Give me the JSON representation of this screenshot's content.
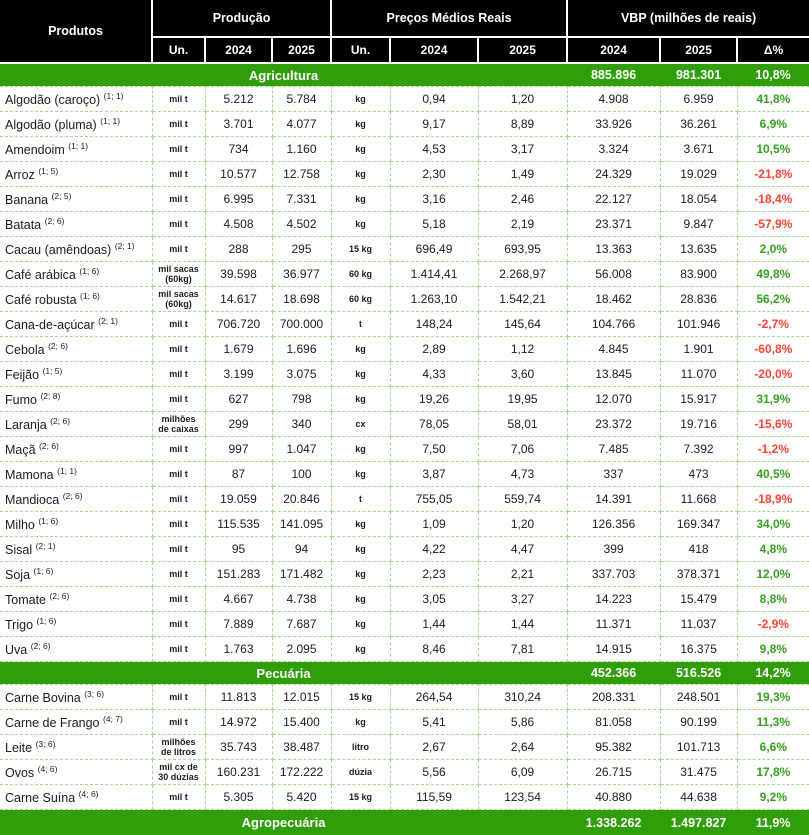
{
  "colors": {
    "section_bar_green": "#2f9e08",
    "positive_delta": "#36a020",
    "negative_delta": "#fb4433",
    "header_bg": "#000000",
    "grid_dashed_green": "#a4d88a"
  },
  "header": {
    "products_label": "Produtos",
    "groups": {
      "production": "Produção",
      "avg_prices": "Preços Médios Reais",
      "vbp": "VBP (milhões de reais)"
    },
    "subcolumns": {
      "un1": "Un.",
      "prod_2024": "2024",
      "prod_2025": "2025",
      "un2": "Un.",
      "price_2024": "2024",
      "price_2025": "2025",
      "vbp_2024": "2024",
      "vbp_2025": "2025",
      "delta": "Δ%"
    }
  },
  "sections": [
    {
      "label": "Agricultura",
      "vbp_2024": "885.896",
      "vbp_2025": "981.301",
      "delta": "10,8%",
      "rows": [
        {
          "name": "Algodão (caroço)",
          "sup": "(1; 1)",
          "un_prod": "mil t",
          "prod_2024": "5.212",
          "prod_2025": "5.784",
          "un_price": "kg",
          "price_2024": "0,94",
          "price_2025": "1,20",
          "vbp_2024": "4.908",
          "vbp_2025": "6.959",
          "delta": "41,8%",
          "trend": "up"
        },
        {
          "name": "Algodão (pluma)",
          "sup": "(1; 1)",
          "un_prod": "mil t",
          "prod_2024": "3.701",
          "prod_2025": "4.077",
          "un_price": "kg",
          "price_2024": "9,17",
          "price_2025": "8,89",
          "vbp_2024": "33.926",
          "vbp_2025": "36.261",
          "delta": "6,9%",
          "trend": "up"
        },
        {
          "name": "Amendoim",
          "sup": "(1; 1)",
          "un_prod": "mil t",
          "prod_2024": "734",
          "prod_2025": "1.160",
          "un_price": "kg",
          "price_2024": "4,53",
          "price_2025": "3,17",
          "vbp_2024": "3.324",
          "vbp_2025": "3.671",
          "delta": "10,5%",
          "trend": "up"
        },
        {
          "name": "Arroz",
          "sup": "(1; 5)",
          "un_prod": "mil t",
          "prod_2024": "10.577",
          "prod_2025": "12.758",
          "un_price": "kg",
          "price_2024": "2,30",
          "price_2025": "1,49",
          "vbp_2024": "24.329",
          "vbp_2025": "19.029",
          "delta": "-21,8%",
          "trend": "down"
        },
        {
          "name": "Banana",
          "sup": "(2; 5)",
          "un_prod": "mil t",
          "prod_2024": "6.995",
          "prod_2025": "7.331",
          "un_price": "kg",
          "price_2024": "3,16",
          "price_2025": "2,46",
          "vbp_2024": "22.127",
          "vbp_2025": "18.054",
          "delta": "-18,4%",
          "trend": "down"
        },
        {
          "name": "Batata",
          "sup": "(2; 6)",
          "un_prod": "mil t",
          "prod_2024": "4.508",
          "prod_2025": "4.502",
          "un_price": "kg",
          "price_2024": "5,18",
          "price_2025": "2,19",
          "vbp_2024": "23.371",
          "vbp_2025": "9.847",
          "delta": "-57,9%",
          "trend": "down"
        },
        {
          "name": "Cacau (amêndoas)",
          "sup": "(2; 1)",
          "un_prod": "mil t",
          "prod_2024": "288",
          "prod_2025": "295",
          "un_price": "15 kg",
          "price_2024": "696,49",
          "price_2025": "693,95",
          "vbp_2024": "13.363",
          "vbp_2025": "13.635",
          "delta": "2,0%",
          "trend": "up"
        },
        {
          "name": "Café arábica",
          "sup": "(1; 6)",
          "un_prod": "mil sacas (60kg)",
          "prod_2024": "39.598",
          "prod_2025": "36.977",
          "un_price": "60 kg",
          "price_2024": "1.414,41",
          "price_2025": "2.268,97",
          "vbp_2024": "56.008",
          "vbp_2025": "83.900",
          "delta": "49,8%",
          "trend": "up"
        },
        {
          "name": "Café robusta",
          "sup": "(1; 6)",
          "un_prod": "mil sacas (60kg)",
          "prod_2024": "14.617",
          "prod_2025": "18.698",
          "un_price": "60 kg",
          "price_2024": "1.263,10",
          "price_2025": "1.542,21",
          "vbp_2024": "18.462",
          "vbp_2025": "28.836",
          "delta": "56,2%",
          "trend": "up"
        },
        {
          "name": "Cana-de-açúcar",
          "sup": "(2; 1)",
          "un_prod": "mil t",
          "prod_2024": "706.720",
          "prod_2025": "700.000",
          "un_price": "t",
          "price_2024": "148,24",
          "price_2025": "145,64",
          "vbp_2024": "104.766",
          "vbp_2025": "101.946",
          "delta": "-2,7%",
          "trend": "down"
        },
        {
          "name": "Cebola",
          "sup": "(2; 6)",
          "un_prod": "mil t",
          "prod_2024": "1.679",
          "prod_2025": "1.696",
          "un_price": "kg",
          "price_2024": "2,89",
          "price_2025": "1,12",
          "vbp_2024": "4.845",
          "vbp_2025": "1.901",
          "delta": "-60,8%",
          "trend": "down"
        },
        {
          "name": "Feijão",
          "sup": "(1; 5)",
          "un_prod": "mil t",
          "prod_2024": "3.199",
          "prod_2025": "3.075",
          "un_price": "kg",
          "price_2024": "4,33",
          "price_2025": "3,60",
          "vbp_2024": "13.845",
          "vbp_2025": "11.070",
          "delta": "-20,0%",
          "trend": "down"
        },
        {
          "name": "Fumo",
          "sup": "(2; 8)",
          "un_prod": "mil t",
          "prod_2024": "627",
          "prod_2025": "798",
          "un_price": "kg",
          "price_2024": "19,26",
          "price_2025": "19,95",
          "vbp_2024": "12.070",
          "vbp_2025": "15.917",
          "delta": "31,9%",
          "trend": "up"
        },
        {
          "name": "Laranja",
          "sup": "(2; 6)",
          "un_prod": "milhões de caixas",
          "prod_2024": "299",
          "prod_2025": "340",
          "un_price": "cx",
          "price_2024": "78,05",
          "price_2025": "58,01",
          "vbp_2024": "23.372",
          "vbp_2025": "19.716",
          "delta": "-15,6%",
          "trend": "down"
        },
        {
          "name": "Maçã",
          "sup": "(2; 6)",
          "un_prod": "mil t",
          "prod_2024": "997",
          "prod_2025": "1.047",
          "un_price": "kg",
          "price_2024": "7,50",
          "price_2025": "7,06",
          "vbp_2024": "7.485",
          "vbp_2025": "7.392",
          "delta": "-1,2%",
          "trend": "down"
        },
        {
          "name": "Mamona",
          "sup": "(1; 1)",
          "un_prod": "mil t",
          "prod_2024": "87",
          "prod_2025": "100",
          "un_price": "kg",
          "price_2024": "3,87",
          "price_2025": "4,73",
          "vbp_2024": "337",
          "vbp_2025": "473",
          "delta": "40,5%",
          "trend": "up"
        },
        {
          "name": "Mandioca",
          "sup": "(2; 6)",
          "un_prod": "mil t",
          "prod_2024": "19.059",
          "prod_2025": "20.846",
          "un_price": "t",
          "price_2024": "755,05",
          "price_2025": "559,74",
          "vbp_2024": "14.391",
          "vbp_2025": "11.668",
          "delta": "-18,9%",
          "trend": "down"
        },
        {
          "name": "Milho",
          "sup": "(1; 6)",
          "un_prod": "mil t",
          "prod_2024": "115.535",
          "prod_2025": "141.095",
          "un_price": "kg",
          "price_2024": "1,09",
          "price_2025": "1,20",
          "vbp_2024": "126.356",
          "vbp_2025": "169.347",
          "delta": "34,0%",
          "trend": "up"
        },
        {
          "name": "Sisal",
          "sup": "(2; 1)",
          "un_prod": "mil t",
          "prod_2024": "95",
          "prod_2025": "94",
          "un_price": "kg",
          "price_2024": "4,22",
          "price_2025": "4,47",
          "vbp_2024": "399",
          "vbp_2025": "418",
          "delta": "4,8%",
          "trend": "up"
        },
        {
          "name": "Soja",
          "sup": "(1; 6)",
          "un_prod": "mil t",
          "prod_2024": "151.283",
          "prod_2025": "171.482",
          "un_price": "kg",
          "price_2024": "2,23",
          "price_2025": "2,21",
          "vbp_2024": "337.703",
          "vbp_2025": "378.371",
          "delta": "12,0%",
          "trend": "up"
        },
        {
          "name": "Tomate",
          "sup": "(2; 6)",
          "un_prod": "mil t",
          "prod_2024": "4.667",
          "prod_2025": "4.738",
          "un_price": "kg",
          "price_2024": "3,05",
          "price_2025": "3,27",
          "vbp_2024": "14.223",
          "vbp_2025": "15.479",
          "delta": "8,8%",
          "trend": "up"
        },
        {
          "name": "Trigo",
          "sup": "(1; 6)",
          "un_prod": "mil t",
          "prod_2024": "7.889",
          "prod_2025": "7.687",
          "un_price": "kg",
          "price_2024": "1,44",
          "price_2025": "1,44",
          "vbp_2024": "11.371",
          "vbp_2025": "11.037",
          "delta": "-2,9%",
          "trend": "down"
        },
        {
          "name": "Uva",
          "sup": "(2; 6)",
          "un_prod": "mil t",
          "prod_2024": "1.763",
          "prod_2025": "2.095",
          "un_price": "kg",
          "price_2024": "8,46",
          "price_2025": "7,81",
          "vbp_2024": "14.915",
          "vbp_2025": "16.375",
          "delta": "9,8%",
          "trend": "up"
        }
      ]
    },
    {
      "label": "Pecuária",
      "vbp_2024": "452.366",
      "vbp_2025": "516.526",
      "delta": "14,2%",
      "rows": [
        {
          "name": "Carne Bovina",
          "sup": "(3; 6)",
          "un_prod": "mil t",
          "prod_2024": "11.813",
          "prod_2025": "12.015",
          "un_price": "15 kg",
          "price_2024": "264,54",
          "price_2025": "310,24",
          "vbp_2024": "208.331",
          "vbp_2025": "248.501",
          "delta": "19,3%",
          "trend": "up"
        },
        {
          "name": "Carne de Frango",
          "sup": "(4; 7)",
          "un_prod": "mil t",
          "prod_2024": "14.972",
          "prod_2025": "15.400",
          "un_price": "kg",
          "price_2024": "5,41",
          "price_2025": "5,86",
          "vbp_2024": "81.058",
          "vbp_2025": "90.199",
          "delta": "11,3%",
          "trend": "up"
        },
        {
          "name": "Leite",
          "sup": "(3; 6)",
          "un_prod": "milhões de litros",
          "prod_2024": "35.743",
          "prod_2025": "38.487",
          "un_price": "litro",
          "price_2024": "2,67",
          "price_2025": "2,64",
          "vbp_2024": "95.382",
          "vbp_2025": "101.713",
          "delta": "6,6%",
          "trend": "up"
        },
        {
          "name": "Ovos",
          "sup": "(4; 6)",
          "un_prod": "mil cx de 30 dúzias",
          "prod_2024": "160.231",
          "prod_2025": "172.222",
          "un_price": "dúzia",
          "price_2024": "5,56",
          "price_2025": "6,09",
          "vbp_2024": "26.715",
          "vbp_2025": "31.475",
          "delta": "17,8%",
          "trend": "up"
        },
        {
          "name": "Carne Suína",
          "sup": "(4; 6)",
          "un_prod": "mil t",
          "prod_2024": "5.305",
          "prod_2025": "5.420",
          "un_price": "15 kg",
          "price_2024": "115,59",
          "price_2025": "123,54",
          "vbp_2024": "40.880",
          "vbp_2025": "44.638",
          "delta": "9,2%",
          "trend": "up"
        }
      ]
    }
  ],
  "footer": {
    "label": "Agropecuária",
    "vbp_2024": "1.338.262",
    "vbp_2025": "1.497.827",
    "delta": "11,9%"
  }
}
